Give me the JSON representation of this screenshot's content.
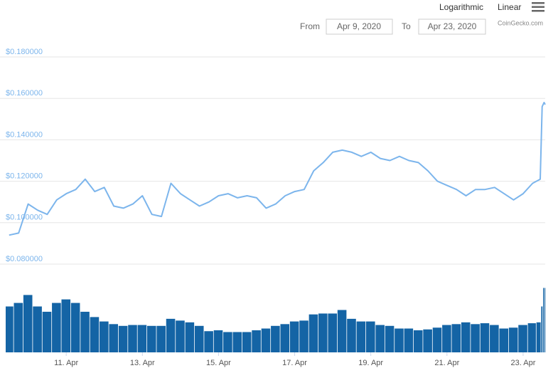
{
  "toolbar": {
    "logarithmic": "Logarithmic",
    "linear": "Linear",
    "from_label": "From",
    "from_date": "Apr 9, 2020",
    "to_label": "To",
    "to_date": "Apr 23, 2020"
  },
  "credit": "CoinGecko.com",
  "chart_data": {
    "type": "line",
    "x": [
      9.5,
      9.75,
      10.0,
      10.25,
      10.5,
      10.75,
      11.0,
      11.25,
      11.5,
      11.75,
      12.0,
      12.25,
      12.5,
      12.75,
      13.0,
      13.25,
      13.5,
      13.75,
      14.0,
      14.25,
      14.5,
      14.75,
      15.0,
      15.25,
      15.5,
      15.75,
      16.0,
      16.25,
      16.5,
      16.75,
      17.0,
      17.25,
      17.5,
      17.75,
      18.0,
      18.25,
      18.5,
      18.75,
      19.0,
      19.25,
      19.5,
      19.75,
      20.0,
      20.25,
      20.5,
      20.75,
      21.0,
      21.25,
      21.5,
      21.75,
      22.0,
      22.25,
      22.5,
      22.75,
      23.0,
      23.25,
      23.45,
      23.5,
      23.55,
      23.58
    ],
    "values": [
      0.094,
      0.095,
      0.109,
      0.106,
      0.104,
      0.111,
      0.114,
      0.116,
      0.121,
      0.115,
      0.117,
      0.108,
      0.107,
      0.109,
      0.113,
      0.104,
      0.103,
      0.119,
      0.114,
      0.111,
      0.108,
      0.11,
      0.113,
      0.114,
      0.112,
      0.113,
      0.112,
      0.107,
      0.109,
      0.113,
      0.115,
      0.116,
      0.125,
      0.129,
      0.134,
      0.135,
      0.134,
      0.132,
      0.134,
      0.131,
      0.13,
      0.132,
      0.13,
      0.129,
      0.125,
      0.12,
      0.118,
      0.116,
      0.113,
      0.116,
      0.116,
      0.117,
      0.114,
      0.111,
      0.114,
      0.119,
      0.121,
      0.156,
      0.158,
      0.157
    ],
    "color": "#7cb5ec",
    "volume": [
      52,
      56,
      65,
      52,
      46,
      56,
      60,
      56,
      46,
      40,
      35,
      32,
      30,
      31,
      31,
      30,
      30,
      38,
      36,
      34,
      30,
      24,
      25,
      23,
      23,
      23,
      25,
      27,
      30,
      32,
      35,
      36,
      43,
      44,
      44,
      48,
      38,
      35,
      35,
      31,
      30,
      27,
      27,
      25,
      26,
      28,
      31,
      32,
      34,
      32,
      33,
      31,
      27,
      28,
      31,
      33,
      34,
      52,
      73,
      73
    ],
    "volume_color": "#1464a5",
    "volume_lim": [
      0,
      100
    ],
    "xlim": [
      9.41,
      23.58
    ],
    "xticks": [
      {
        "value": 11,
        "label": "11. Apr"
      },
      {
        "value": 13,
        "label": "13. Apr"
      },
      {
        "value": 15,
        "label": "15. Apr"
      },
      {
        "value": 17,
        "label": "17. Apr"
      },
      {
        "value": 19,
        "label": "19. Apr"
      },
      {
        "value": 21,
        "label": "21. Apr"
      },
      {
        "value": 23,
        "label": "23. Apr"
      }
    ],
    "ylim": [
      0.08,
      0.18
    ],
    "yticks": [
      {
        "value": 0.08,
        "label": "$0.080000"
      },
      {
        "value": 0.1,
        "label": "$0.100000"
      },
      {
        "value": 0.12,
        "label": "$0.120000"
      },
      {
        "value": 0.14,
        "label": "$0.140000"
      },
      {
        "value": 0.16,
        "label": "$0.160000"
      },
      {
        "value": 0.18,
        "label": "$0.180000"
      }
    ],
    "grid": true
  }
}
